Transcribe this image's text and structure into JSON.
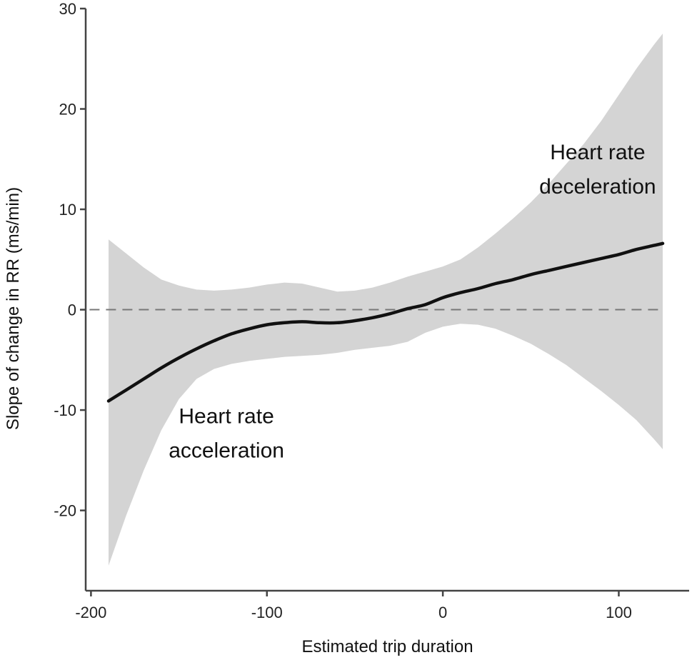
{
  "chart_data": {
    "type": "line",
    "xlabel": "Estimated trip duration",
    "ylabel": "Slope of change in RR (ms/min)",
    "xlim": [
      -203,
      140
    ],
    "ylim": [
      -28,
      30
    ],
    "x_ticks": [
      -200,
      -100,
      0,
      100
    ],
    "x_tick_labels": [
      "-200",
      "-100",
      "0",
      "100"
    ],
    "y_ticks": [
      -20,
      -10,
      0,
      10,
      20,
      30
    ],
    "y_tick_labels": [
      "-20",
      "-10",
      "0",
      "10",
      "20",
      "30"
    ],
    "reference_line": {
      "y": 0,
      "style": "dashed"
    },
    "grid": false,
    "series": [
      {
        "x": [
          -190,
          -180,
          -170,
          -160,
          -150,
          -140,
          -130,
          -120,
          -110,
          -100,
          -90,
          -80,
          -70,
          -60,
          -50,
          -40,
          -30,
          -20,
          -10,
          0,
          10,
          20,
          30,
          40,
          50,
          60,
          70,
          80,
          90,
          100,
          110,
          120,
          125
        ],
        "y": [
          -9.1,
          -8.0,
          -6.9,
          -5.8,
          -4.8,
          -3.9,
          -3.1,
          -2.4,
          -1.9,
          -1.5,
          -1.3,
          -1.2,
          -1.3,
          -1.3,
          -1.1,
          -0.8,
          -0.4,
          0.1,
          0.5,
          1.2,
          1.7,
          2.1,
          2.6,
          3.0,
          3.5,
          3.9,
          4.3,
          4.7,
          5.1,
          5.5,
          6.0,
          6.4,
          6.6
        ],
        "lower": [
          -25.5,
          -20.5,
          -16.0,
          -12.0,
          -8.9,
          -6.9,
          -5.9,
          -5.4,
          -5.1,
          -4.9,
          -4.7,
          -4.6,
          -4.5,
          -4.3,
          -4.0,
          -3.8,
          -3.6,
          -3.2,
          -2.3,
          -1.7,
          -1.4,
          -1.5,
          -1.9,
          -2.6,
          -3.4,
          -4.4,
          -5.5,
          -6.8,
          -8.1,
          -9.5,
          -11.0,
          -12.9,
          -13.9
        ],
        "upper": [
          7.0,
          5.6,
          4.2,
          3.0,
          2.4,
          2.0,
          1.9,
          2.0,
          2.2,
          2.5,
          2.7,
          2.6,
          2.2,
          1.8,
          1.9,
          2.2,
          2.7,
          3.3,
          3.8,
          4.3,
          5.0,
          6.2,
          7.6,
          9.1,
          10.7,
          12.5,
          14.5,
          16.5,
          18.8,
          21.4,
          24.0,
          26.4,
          27.5
        ]
      }
    ],
    "annotations": [
      {
        "lines": [
          "Heart rate",
          "deceleration"
        ],
        "x": 88,
        "y": 15
      },
      {
        "lines": [
          "Heart rate",
          "acceleration"
        ],
        "x": -123,
        "y": -11.3
      }
    ],
    "colors": {
      "band": "#d4d4d4",
      "line": "#111111",
      "axis": "#444444",
      "refline": "#777777"
    }
  }
}
